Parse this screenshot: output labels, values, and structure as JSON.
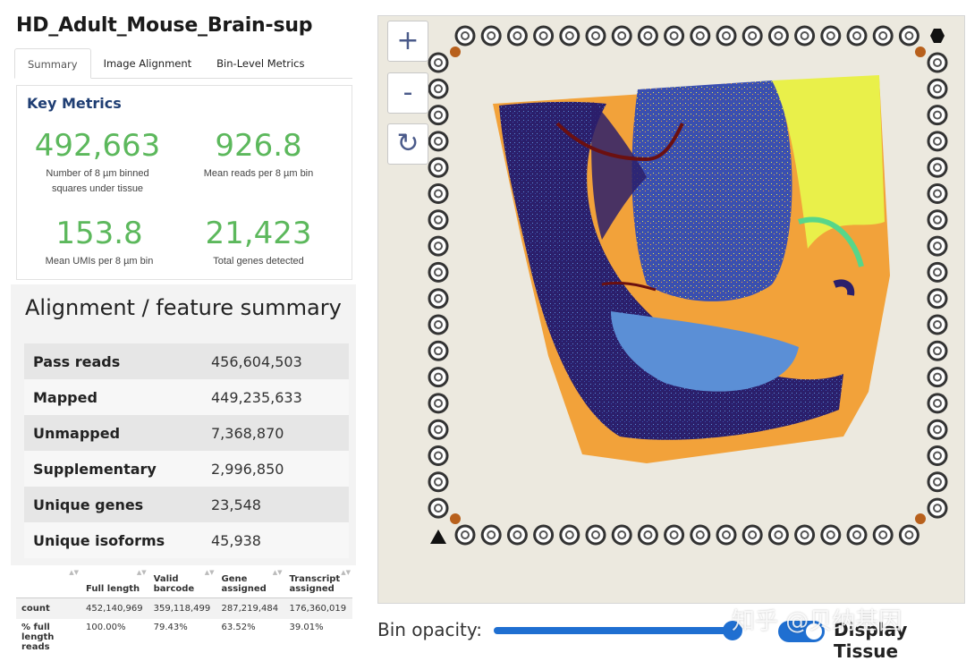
{
  "app": {
    "title": "HD_Adult_Mouse_Brain-sup"
  },
  "tabs": [
    {
      "label": "Summary",
      "active": true
    },
    {
      "label": "Image Alignment",
      "active": false
    },
    {
      "label": "Bin-Level Metrics",
      "active": false
    }
  ],
  "key_metrics": {
    "title": "Key Metrics",
    "items": [
      {
        "value": "492,663",
        "label": "Number of 8 µm binned squares under tissue"
      },
      {
        "value": "926.8",
        "label": "Mean reads per 8 µm bin"
      },
      {
        "value": "153.8",
        "label": "Mean UMIs per 8 µm bin"
      },
      {
        "value": "21,423",
        "label": "Total genes detected"
      }
    ],
    "value_color": "#5cb85c"
  },
  "alignment": {
    "title": "Alignment / feature summary",
    "rows": [
      {
        "label": "Pass reads",
        "value": "456,604,503"
      },
      {
        "label": "Mapped",
        "value": "449,235,633"
      },
      {
        "label": "Unmapped",
        "value": "7,368,870"
      },
      {
        "label": "Supplementary",
        "value": "2,996,850"
      },
      {
        "label": "Unique genes",
        "value": "23,548"
      },
      {
        "label": "Unique isoforms",
        "value": "45,938"
      }
    ]
  },
  "counts_table": {
    "columns": [
      "",
      "Full length",
      "Valid barcode",
      "Gene assigned",
      "Transcript assigned"
    ],
    "rows": [
      {
        "label": "count",
        "values": [
          "452,140,969",
          "359,118,499",
          "287,219,484",
          "176,360,019"
        ]
      },
      {
        "label": "% full length reads",
        "values": [
          "100.00%",
          "79.43%",
          "63.52%",
          "39.01%"
        ]
      }
    ]
  },
  "viewer": {
    "zoom_in_label": "+",
    "zoom_out_label": "-",
    "reset_label": "↻",
    "opacity_label": "Bin opacity:",
    "opacity_value": 0.95,
    "display_tissue_label": "Display Tissue",
    "display_tissue_on": true,
    "watermark": "知乎 @贝纳基因",
    "colors": {
      "dark_purple": "#2b1f6b",
      "blue": "#3a4fb0",
      "light_blue": "#5b8fd6",
      "yellow": "#e9f04a",
      "orange": "#f2a23a",
      "green": "#57d68a",
      "dark_red": "#6b1010",
      "accent": "#1f6fd1"
    }
  }
}
